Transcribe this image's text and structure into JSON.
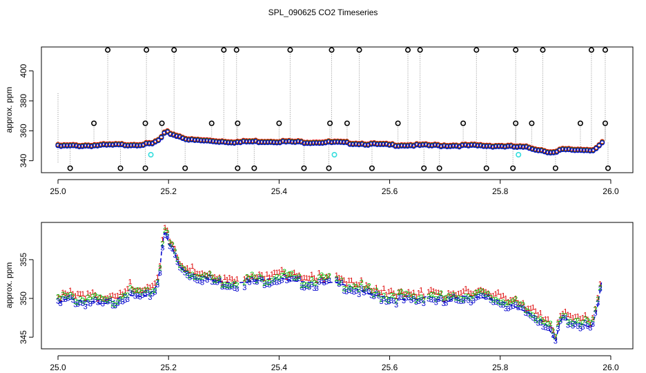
{
  "title": "SPL_090625  CO2 Timeseries",
  "colors": {
    "red": "#dd0000",
    "green": "#00bb00",
    "blue": "#0000cc",
    "cyan": "#33dddd",
    "black": "#000000",
    "gray": "#888888"
  },
  "chart_data": [
    {
      "type": "scatter",
      "ylabel": "approx. ppm",
      "xlim": [
        24.97,
        26.04
      ],
      "ylim": [
        332,
        416
      ],
      "xticks": [
        25.0,
        25.2,
        25.4,
        25.6,
        25.8,
        26.0
      ],
      "xtick_labels": [
        "25.0",
        "25.2",
        "25.4",
        "25.6",
        "25.8",
        "26.0"
      ],
      "yticks": [
        340,
        360,
        380,
        400
      ],
      "ytick_labels": [
        "340",
        "360",
        "380",
        "400"
      ],
      "baseline": [
        [
          25.0,
          349.5
        ],
        [
          25.05,
          349.8
        ],
        [
          25.1,
          350.2
        ],
        [
          25.15,
          350.5
        ],
        [
          25.17,
          351
        ],
        [
          25.185,
          354
        ],
        [
          25.195,
          359
        ],
        [
          25.21,
          357
        ],
        [
          25.24,
          353.5
        ],
        [
          25.3,
          352.5
        ],
        [
          25.33,
          352
        ],
        [
          25.34,
          352.5
        ],
        [
          25.4,
          352.5
        ],
        [
          25.45,
          352
        ],
        [
          25.5,
          352
        ],
        [
          25.55,
          351
        ],
        [
          25.6,
          350.2
        ],
        [
          25.65,
          350
        ],
        [
          25.7,
          349.8
        ],
        [
          25.75,
          349.8
        ],
        [
          25.8,
          349.5
        ],
        [
          25.85,
          348.5
        ],
        [
          25.89,
          345.5
        ],
        [
          25.9,
          345
        ],
        [
          25.91,
          347
        ],
        [
          25.95,
          347
        ],
        [
          25.97,
          347
        ],
        [
          25.99,
          353
        ]
      ],
      "high_outliers": [
        [
          25.09,
          414
        ],
        [
          25.16,
          414
        ],
        [
          25.21,
          414
        ],
        [
          25.3,
          414
        ],
        [
          25.323,
          414
        ],
        [
          25.42,
          414
        ],
        [
          25.495,
          414
        ],
        [
          25.545,
          414
        ],
        [
          25.633,
          414
        ],
        [
          25.655,
          414
        ],
        [
          25.757,
          414
        ],
        [
          25.828,
          414
        ],
        [
          25.877,
          414
        ],
        [
          25.965,
          414
        ],
        [
          25.99,
          414
        ]
      ],
      "mid_outliers": [
        [
          25.065,
          365
        ],
        [
          25.158,
          365
        ],
        [
          25.188,
          365
        ],
        [
          25.278,
          365
        ],
        [
          25.325,
          365
        ],
        [
          25.4,
          365
        ],
        [
          25.492,
          365
        ],
        [
          25.523,
          365
        ],
        [
          25.615,
          365
        ],
        [
          25.733,
          365
        ],
        [
          25.828,
          365
        ],
        [
          25.857,
          365
        ],
        [
          25.945,
          365
        ],
        [
          25.99,
          365
        ]
      ],
      "low_outliers": [
        [
          25.022,
          335
        ],
        [
          25.113,
          335
        ],
        [
          25.158,
          335
        ],
        [
          25.23,
          335
        ],
        [
          25.325,
          335
        ],
        [
          25.355,
          335
        ],
        [
          25.445,
          335
        ],
        [
          25.49,
          335
        ],
        [
          25.568,
          335
        ],
        [
          25.662,
          335
        ],
        [
          25.69,
          335
        ],
        [
          25.775,
          335
        ],
        [
          25.823,
          335
        ],
        [
          25.9,
          335
        ],
        [
          25.995,
          335
        ]
      ],
      "cyan_points": [
        [
          25.168,
          344
        ],
        [
          25.5,
          344
        ],
        [
          25.833,
          344
        ]
      ]
    },
    {
      "type": "line",
      "ylabel": "approx. ppm",
      "xlim": [
        24.97,
        26.04
      ],
      "ylim": [
        343.5,
        359.8
      ],
      "xticks": [
        25.0,
        25.2,
        25.4,
        25.6,
        25.8,
        26.0
      ],
      "xtick_labels": [
        "25.0",
        "25.2",
        "25.4",
        "25.6",
        "25.8",
        "26.0"
      ],
      "yticks": [
        345,
        350,
        355
      ],
      "ytick_labels": [
        "345",
        "350",
        "355"
      ],
      "series": [
        {
          "name": "1",
          "color": "#dd0000",
          "offset": 0.9
        },
        {
          "name": "2",
          "color": "#00bb00",
          "offset": 0.45
        },
        {
          "name": "3",
          "color": "#0000cc",
          "offset": 0
        }
      ],
      "points": [
        [
          25.0,
          349.3
        ],
        [
          25.01,
          349.8
        ],
        [
          25.02,
          350
        ],
        [
          25.04,
          349.7
        ],
        [
          25.06,
          349.6
        ],
        [
          25.08,
          349.3
        ],
        [
          25.1,
          349.6
        ],
        [
          25.12,
          350.5
        ],
        [
          25.14,
          350.3
        ],
        [
          25.16,
          350.3
        ],
        [
          25.175,
          351.2
        ],
        [
          25.18,
          352
        ],
        [
          25.185,
          354
        ],
        [
          25.19,
          358
        ],
        [
          25.195,
          358.8
        ],
        [
          25.2,
          357
        ],
        [
          25.21,
          356
        ],
        [
          25.22,
          354
        ],
        [
          25.24,
          353.2
        ],
        [
          25.26,
          352.8
        ],
        [
          25.28,
          352.3
        ],
        [
          25.3,
          352.1
        ],
        [
          25.32,
          352
        ],
        [
          25.34,
          352.1
        ],
        [
          25.37,
          352.4
        ],
        [
          25.4,
          352.7
        ],
        [
          25.42,
          352.3
        ],
        [
          25.45,
          352.1
        ],
        [
          25.48,
          352
        ],
        [
          25.5,
          352.1
        ],
        [
          25.53,
          351.5
        ],
        [
          25.56,
          350.6
        ],
        [
          25.6,
          350.1
        ],
        [
          25.63,
          349.8
        ],
        [
          25.65,
          349.9
        ],
        [
          25.67,
          350.3
        ],
        [
          25.7,
          349.5
        ],
        [
          25.73,
          350.3
        ],
        [
          25.77,
          350.1
        ],
        [
          25.8,
          349.7
        ],
        [
          25.82,
          349.1
        ],
        [
          25.85,
          348.2
        ],
        [
          25.87,
          347.5
        ],
        [
          25.885,
          346.5
        ],
        [
          25.9,
          344.5
        ],
        [
          25.91,
          347.5
        ],
        [
          25.93,
          347.1
        ],
        [
          25.95,
          346.6
        ],
        [
          25.965,
          346.2
        ],
        [
          25.975,
          348.5
        ],
        [
          25.985,
          352.8
        ]
      ],
      "gaps": [
        [
          25.325,
          25.335
        ],
        [
          25.495,
          25.5
        ],
        [
          25.665,
          25.668
        ]
      ]
    }
  ]
}
